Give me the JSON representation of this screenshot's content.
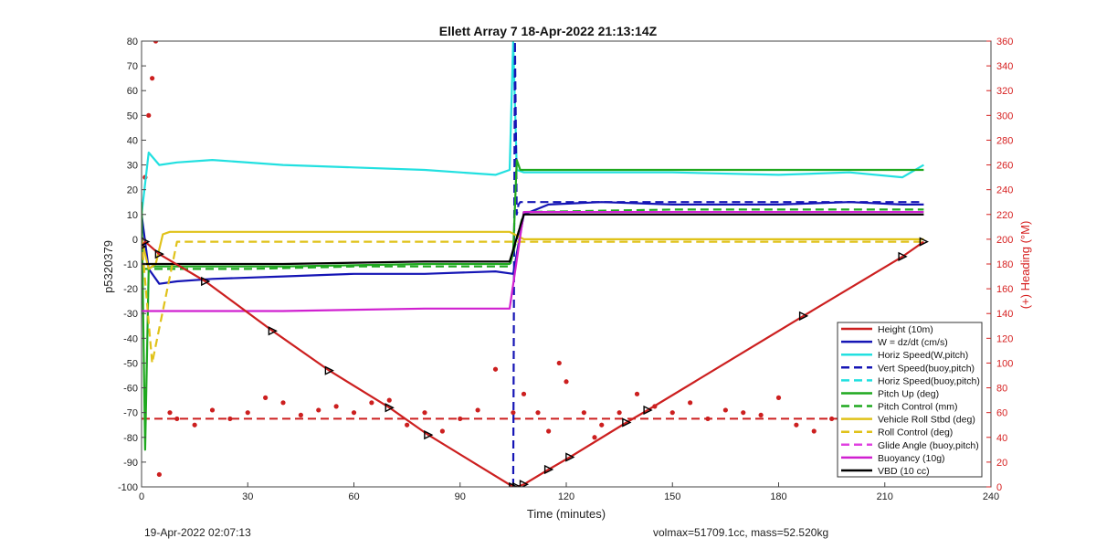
{
  "chart_data": {
    "type": "line",
    "title": "Ellett Array 7 18-Apr-2022 21:13:14Z",
    "xlabel": "Time (minutes)",
    "ylabel": "p5320379",
    "y2label": "(+) Heading (°M)",
    "xlim": [
      0,
      240
    ],
    "ylim": [
      -100,
      80
    ],
    "y2lim": [
      0,
      360
    ],
    "xticks": [
      0,
      30,
      60,
      90,
      120,
      150,
      180,
      210,
      240
    ],
    "yticks": [
      -100,
      -90,
      -80,
      -70,
      -60,
      -50,
      -40,
      -30,
      -20,
      -10,
      0,
      10,
      20,
      30,
      40,
      50,
      60,
      70,
      80
    ],
    "y2ticks": [
      0,
      20,
      40,
      60,
      80,
      100,
      120,
      140,
      160,
      180,
      200,
      220,
      240,
      260,
      280,
      300,
      320,
      340,
      360
    ],
    "footer_left": "19-Apr-2022 02:07:13",
    "footer_right": "volmax=51709.1cc, mass=52.520kg",
    "legend_position": "bottom-right",
    "series": [
      {
        "name": "Height (10m)",
        "color": "#cc1f1f",
        "style": "solid",
        "x": [
          0,
          1,
          5,
          18,
          37,
          53,
          70,
          81,
          105,
          106,
          108,
          115,
          121,
          137,
          143,
          187,
          215,
          221
        ],
        "y": [
          -3,
          -1,
          -6,
          -17,
          -37,
          -53,
          -68,
          -79,
          -100,
          -100,
          -99,
          -93,
          -88,
          -74,
          -69,
          -31,
          -7,
          -1
        ]
      },
      {
        "name": "W = dz/dt (cm/s)",
        "color": "#1515b5",
        "style": "solid",
        "x": [
          0,
          2,
          5,
          10,
          20,
          40,
          60,
          80,
          100,
          105,
          108,
          115,
          130,
          150,
          180,
          200,
          215,
          221
        ],
        "y": [
          10,
          -12,
          -18,
          -17,
          -16,
          -15,
          -14,
          -14,
          -13,
          -14,
          10,
          14,
          15,
          14,
          14,
          15,
          14,
          14
        ]
      },
      {
        "name": "Horiz Speed(W,pitch)",
        "color": "#22e0e0",
        "style": "solid",
        "x": [
          0,
          2,
          5,
          10,
          20,
          40,
          60,
          80,
          100,
          104,
          105,
          106,
          108,
          115,
          130,
          150,
          180,
          200,
          215,
          221
        ],
        "y": [
          10,
          35,
          30,
          31,
          32,
          30,
          29,
          28,
          26,
          28,
          80,
          28,
          27,
          27,
          27,
          27,
          26,
          27,
          25,
          30
        ]
      },
      {
        "name": "Vert Speed(buoy,pitch)",
        "color": "#1515b5",
        "style": "dashed",
        "x": [
          0,
          104,
          105,
          105.5,
          106,
          106.5,
          107,
          221
        ],
        "y": [
          null,
          null,
          -100,
          80,
          10,
          14,
          15,
          15
        ]
      },
      {
        "name": "Horiz Speed(buoy,pitch)",
        "color": "#22e0e0",
        "style": "dashed",
        "x": [
          0,
          221
        ],
        "y": [
          null,
          null
        ]
      },
      {
        "name": "Pitch Up (deg)",
        "color": "#1fa81f",
        "style": "solid",
        "x": [
          0,
          1,
          2,
          3,
          5,
          10,
          40,
          80,
          104,
          105,
          106,
          107,
          108,
          115,
          150,
          200,
          221
        ],
        "y": [
          15,
          -85,
          -12,
          -11,
          -11,
          -11,
          -11,
          -10,
          -10,
          -5,
          32,
          28,
          28,
          28,
          28,
          28,
          28
        ]
      },
      {
        "name": "Pitch Control (mm)",
        "color": "#1fa81f",
        "style": "dashed",
        "x": [
          0,
          3,
          30,
          60,
          90,
          104,
          108,
          150,
          200,
          221
        ],
        "y": [
          -12,
          -12,
          -12,
          -11,
          -11,
          -11,
          11,
          12,
          12,
          12
        ]
      },
      {
        "name": "Vehicle Roll Stbd (deg)",
        "color": "#e0c21a",
        "style": "solid",
        "x": [
          0,
          2,
          4,
          6,
          8,
          10,
          40,
          80,
          100,
          104,
          108,
          115,
          150,
          200,
          221
        ],
        "y": [
          0,
          -12,
          -10,
          2,
          3,
          3,
          3,
          3,
          3,
          3,
          0,
          0,
          0,
          0,
          0
        ]
      },
      {
        "name": "Roll Control (deg)",
        "color": "#e0c21a",
        "style": "dashed",
        "x": [
          0,
          3,
          10,
          40,
          80,
          100,
          104,
          108,
          115,
          150,
          200,
          221
        ],
        "y": [
          0,
          -50,
          -1,
          -1,
          -1,
          -1,
          -1,
          -1,
          -1,
          -1,
          -1,
          -1
        ]
      },
      {
        "name": "Glide Angle (buoy,pitch)",
        "color": "#e040e0",
        "style": "dashed",
        "x": [
          0,
          221
        ],
        "y": [
          null,
          null
        ]
      },
      {
        "name": "Buoyancy (10g)",
        "color": "#d020d0",
        "style": "solid",
        "x": [
          0,
          3,
          10,
          40,
          80,
          104,
          108,
          115,
          150,
          200,
          221
        ],
        "y": [
          -29,
          -29,
          -29,
          -29,
          -28,
          -28,
          11,
          11,
          11,
          11,
          11
        ]
      },
      {
        "name": "VBD (10 cc)",
        "color": "#000000",
        "style": "solid",
        "x": [
          0,
          3,
          10,
          40,
          80,
          104,
          108,
          115,
          150,
          200,
          221
        ],
        "y": [
          -10,
          -10,
          -10,
          -10,
          -9,
          -9,
          10,
          10,
          10,
          10,
          10
        ]
      }
    ],
    "heading_series": {
      "color": "#cc1f1f",
      "style": "dotted",
      "axis": "right",
      "x": [
        0,
        1,
        2,
        3,
        4,
        5,
        8,
        10,
        15,
        20,
        25,
        30,
        35,
        40,
        45,
        50,
        55,
        60,
        65,
        70,
        75,
        80,
        85,
        90,
        95,
        100,
        105,
        108,
        112,
        115,
        118,
        120,
        125,
        128,
        130,
        135,
        140,
        145,
        150,
        155,
        160,
        165,
        170,
        175,
        180,
        185,
        190,
        195,
        200,
        205,
        210,
        215,
        220
      ],
      "y": [
        200,
        250,
        300,
        330,
        360,
        10,
        60,
        55,
        50,
        62,
        55,
        60,
        72,
        68,
        58,
        62,
        65,
        60,
        68,
        70,
        50,
        60,
        45,
        55,
        62,
        95,
        60,
        75,
        60,
        45,
        100,
        85,
        60,
        40,
        50,
        60,
        75,
        65,
        60,
        68,
        55,
        62,
        60,
        58,
        72,
        50,
        45,
        55,
        40,
        35,
        48,
        60,
        75
      ]
    },
    "heading_mean": {
      "color": "#cc1f1f",
      "style": "dashed",
      "x": [
        0,
        221
      ],
      "y": [
        55,
        55
      ]
    }
  }
}
